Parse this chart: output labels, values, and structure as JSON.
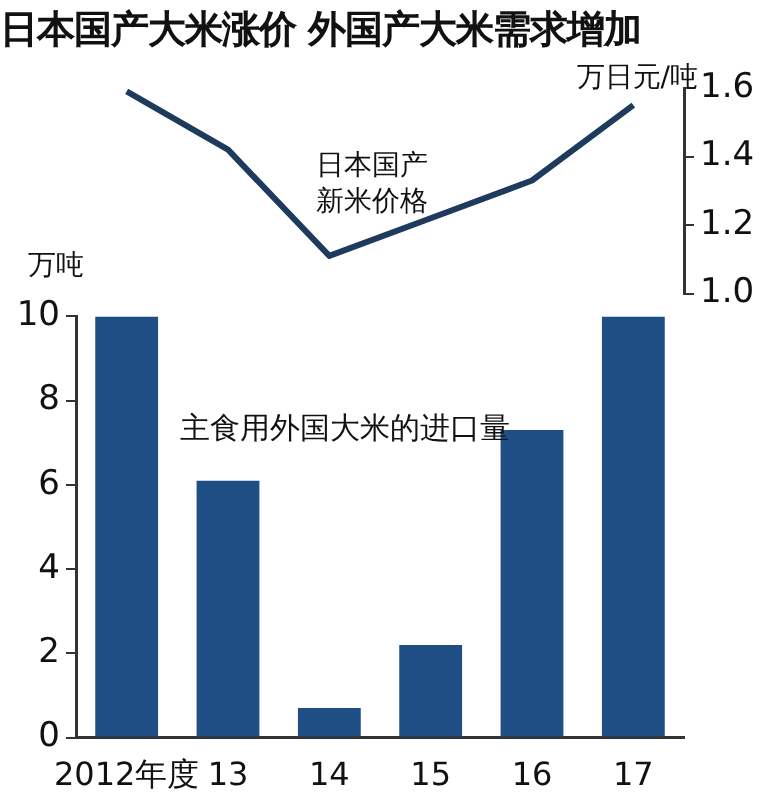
{
  "chart_data": [
    {
      "type": "line",
      "title": "日本国产大米涨价  外国产大米需求增加",
      "categories": [
        null,
        null,
        null,
        null,
        null,
        null
      ],
      "series": [
        {
          "name": "日本国产新米价格",
          "color": "#1e3a5c",
          "values": [
            1.59,
            1.42,
            1.11,
            1.22,
            1.33,
            1.55
          ]
        }
      ],
      "ylabel": "万日元/吨",
      "ylim": [
        1.0,
        1.6
      ],
      "yticks": [
        {
          "value": 1.0,
          "label": "1.0"
        },
        {
          "value": 1.2,
          "label": "1.2"
        },
        {
          "value": 1.4,
          "label": "1.4"
        },
        {
          "value": 1.6,
          "label": "1.6"
        }
      ],
      "tick_labels": "y",
      "grid": false,
      "legend": false,
      "marker": "none",
      "line_style": "solid"
    },
    {
      "type": "bar",
      "categories": [
        "2012年度",
        "13",
        "14",
        "15",
        "16",
        "17"
      ],
      "series": [
        {
          "name": "主食用外国大米的进口量",
          "color": "#1f4e85",
          "values": [
            10,
            6.1,
            0.7,
            2.2,
            7.3,
            10
          ]
        }
      ],
      "ylabel": "万吨",
      "ylim": [
        0,
        10
      ],
      "yticks": [
        0,
        2,
        4,
        6,
        8,
        10
      ],
      "grid": false,
      "legend": false
    }
  ]
}
